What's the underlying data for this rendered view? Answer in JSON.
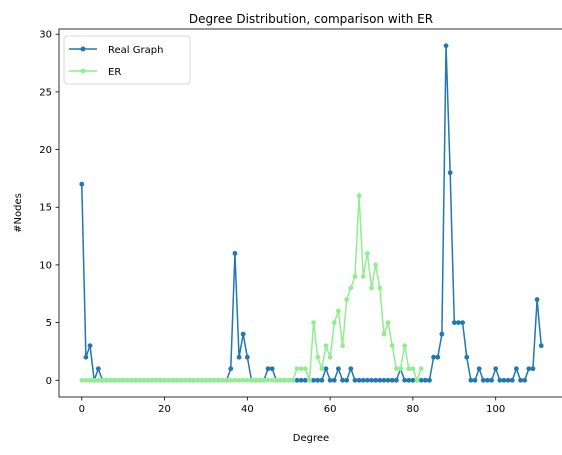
{
  "chart_data": {
    "type": "line",
    "title": "Degree Distribution, comparison with ER",
    "xlabel": "Degree",
    "ylabel": "#Nodes",
    "xlim": [
      -5.5,
      116.5
    ],
    "ylim": [
      -1.45,
      30.45
    ],
    "xticks": [
      0,
      20,
      40,
      60,
      80,
      100
    ],
    "yticks": [
      0,
      5,
      10,
      15,
      20,
      25,
      30
    ],
    "grid": false,
    "legend_position": "upper-left",
    "series": [
      {
        "name": "Real Graph",
        "color": "#1f77b4",
        "marker": "circle",
        "points": [
          [
            0,
            17
          ],
          [
            1,
            2
          ],
          [
            2,
            3
          ],
          [
            3,
            0
          ],
          [
            4,
            1
          ],
          [
            5,
            0
          ],
          [
            6,
            0
          ],
          [
            7,
            0
          ],
          [
            8,
            0
          ],
          [
            9,
            0
          ],
          [
            10,
            0
          ],
          [
            11,
            0
          ],
          [
            12,
            0
          ],
          [
            13,
            0
          ],
          [
            14,
            0
          ],
          [
            15,
            0
          ],
          [
            16,
            0
          ],
          [
            17,
            0
          ],
          [
            18,
            0
          ],
          [
            19,
            0
          ],
          [
            20,
            0
          ],
          [
            21,
            0
          ],
          [
            22,
            0
          ],
          [
            23,
            0
          ],
          [
            24,
            0
          ],
          [
            25,
            0
          ],
          [
            26,
            0
          ],
          [
            27,
            0
          ],
          [
            28,
            0
          ],
          [
            29,
            0
          ],
          [
            30,
            0
          ],
          [
            31,
            0
          ],
          [
            32,
            0
          ],
          [
            33,
            0
          ],
          [
            34,
            0
          ],
          [
            35,
            0
          ],
          [
            36,
            1
          ],
          [
            37,
            11
          ],
          [
            38,
            2
          ],
          [
            39,
            4
          ],
          [
            40,
            2
          ],
          [
            41,
            0
          ],
          [
            42,
            0
          ],
          [
            43,
            0
          ],
          [
            44,
            0
          ],
          [
            45,
            1
          ],
          [
            46,
            1
          ],
          [
            47,
            0
          ],
          [
            48,
            0
          ],
          [
            49,
            0
          ],
          [
            50,
            0
          ],
          [
            51,
            0
          ],
          [
            52,
            0
          ],
          [
            53,
            0
          ],
          [
            54,
            0
          ],
          [
            55,
            0
          ],
          [
            56,
            0
          ],
          [
            57,
            0
          ],
          [
            58,
            0
          ],
          [
            59,
            1
          ],
          [
            60,
            0
          ],
          [
            61,
            0
          ],
          [
            62,
            1
          ],
          [
            63,
            0
          ],
          [
            64,
            0
          ],
          [
            65,
            1
          ],
          [
            66,
            0
          ],
          [
            67,
            0
          ],
          [
            68,
            0
          ],
          [
            69,
            0
          ],
          [
            70,
            0
          ],
          [
            71,
            0
          ],
          [
            72,
            0
          ],
          [
            73,
            0
          ],
          [
            74,
            0
          ],
          [
            75,
            0
          ],
          [
            76,
            0
          ],
          [
            77,
            1
          ],
          [
            78,
            0
          ],
          [
            79,
            0
          ],
          [
            80,
            0
          ],
          [
            81,
            0
          ],
          [
            82,
            0
          ],
          [
            83,
            0
          ],
          [
            84,
            0
          ],
          [
            85,
            2
          ],
          [
            86,
            2
          ],
          [
            87,
            4
          ],
          [
            88,
            29
          ],
          [
            89,
            18
          ],
          [
            90,
            5
          ],
          [
            91,
            5
          ],
          [
            92,
            5
          ],
          [
            93,
            2
          ],
          [
            94,
            0
          ],
          [
            95,
            0
          ],
          [
            96,
            1
          ],
          [
            97,
            0
          ],
          [
            98,
            0
          ],
          [
            99,
            0
          ],
          [
            100,
            1
          ],
          [
            101,
            0
          ],
          [
            102,
            0
          ],
          [
            103,
            0
          ],
          [
            104,
            0
          ],
          [
            105,
            1
          ],
          [
            106,
            0
          ],
          [
            107,
            0
          ],
          [
            108,
            1
          ],
          [
            109,
            1
          ],
          [
            110,
            7
          ],
          [
            111,
            3
          ]
        ]
      },
      {
        "name": "ER",
        "color": "#90ee90",
        "marker": "circle",
        "points": [
          [
            0,
            0
          ],
          [
            1,
            0
          ],
          [
            2,
            0
          ],
          [
            3,
            0
          ],
          [
            4,
            0
          ],
          [
            5,
            0
          ],
          [
            6,
            0
          ],
          [
            7,
            0
          ],
          [
            8,
            0
          ],
          [
            9,
            0
          ],
          [
            10,
            0
          ],
          [
            11,
            0
          ],
          [
            12,
            0
          ],
          [
            13,
            0
          ],
          [
            14,
            0
          ],
          [
            15,
            0
          ],
          [
            16,
            0
          ],
          [
            17,
            0
          ],
          [
            18,
            0
          ],
          [
            19,
            0
          ],
          [
            20,
            0
          ],
          [
            21,
            0
          ],
          [
            22,
            0
          ],
          [
            23,
            0
          ],
          [
            24,
            0
          ],
          [
            25,
            0
          ],
          [
            26,
            0
          ],
          [
            27,
            0
          ],
          [
            28,
            0
          ],
          [
            29,
            0
          ],
          [
            30,
            0
          ],
          [
            31,
            0
          ],
          [
            32,
            0
          ],
          [
            33,
            0
          ],
          [
            34,
            0
          ],
          [
            35,
            0
          ],
          [
            36,
            0
          ],
          [
            37,
            0
          ],
          [
            38,
            0
          ],
          [
            39,
            0
          ],
          [
            40,
            0
          ],
          [
            41,
            0
          ],
          [
            42,
            0
          ],
          [
            43,
            0
          ],
          [
            44,
            0
          ],
          [
            45,
            0
          ],
          [
            46,
            0
          ],
          [
            47,
            0
          ],
          [
            48,
            0
          ],
          [
            49,
            0
          ],
          [
            50,
            0
          ],
          [
            51,
            0
          ],
          [
            52,
            1
          ],
          [
            53,
            1
          ],
          [
            54,
            1
          ],
          [
            55,
            0
          ],
          [
            56,
            5
          ],
          [
            57,
            2
          ],
          [
            58,
            1
          ],
          [
            59,
            3
          ],
          [
            60,
            2
          ],
          [
            61,
            5
          ],
          [
            62,
            6
          ],
          [
            63,
            3
          ],
          [
            64,
            7
          ],
          [
            65,
            8
          ],
          [
            66,
            9
          ],
          [
            67,
            16
          ],
          [
            68,
            9
          ],
          [
            69,
            11
          ],
          [
            70,
            8
          ],
          [
            71,
            10
          ],
          [
            72,
            8
          ],
          [
            73,
            4
          ],
          [
            74,
            5
          ],
          [
            75,
            3
          ],
          [
            76,
            1
          ],
          [
            77,
            1
          ],
          [
            78,
            3
          ],
          [
            79,
            1
          ],
          [
            80,
            1
          ],
          [
            81,
            0
          ],
          [
            82,
            1
          ]
        ]
      }
    ]
  }
}
